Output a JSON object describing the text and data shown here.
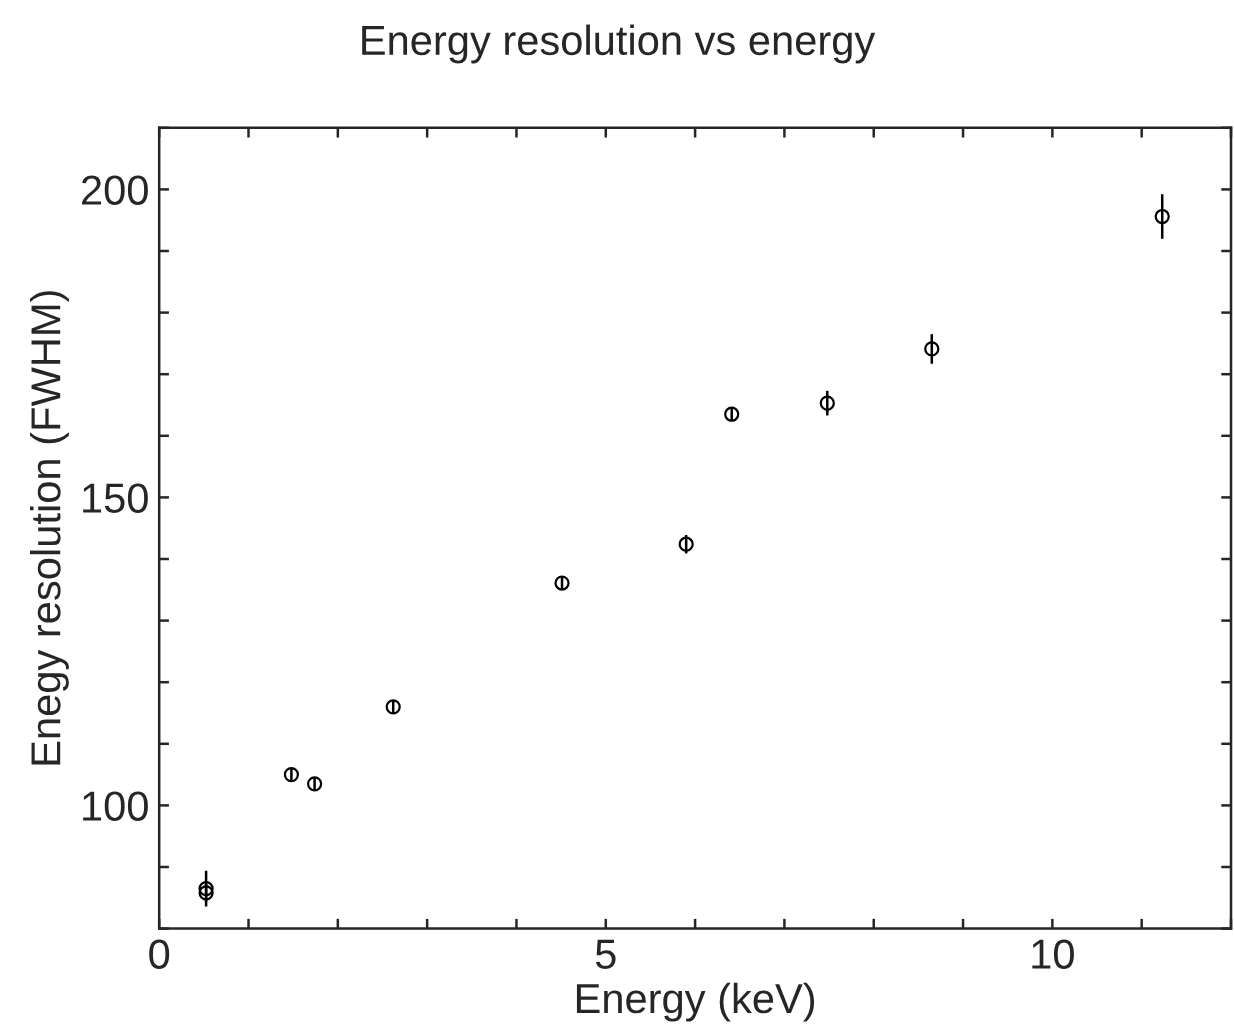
{
  "chart_data": {
    "type": "scatter",
    "title": "Energy resolution vs energy",
    "xlabel": "Energy (keV)",
    "ylabel": "Enegy resolution (FWHM)",
    "series": [
      {
        "color": "#000000",
        "x": [
          0.525,
          0.525,
          1.48,
          1.74,
          2.62,
          4.51,
          5.9,
          6.41,
          7.48,
          8.65,
          11.23
        ],
        "values": [
          86.5,
          85.8,
          105.0,
          103.5,
          116.0,
          136.1,
          142.4,
          163.5,
          165.3,
          174.1,
          195.6
        ],
        "errors": [
          2.9,
          1.5,
          1,
          1,
          1,
          1,
          1.5,
          1,
          2,
          2.4,
          3.6
        ]
      }
    ],
    "marker": "circle",
    "grid": false,
    "legend": false,
    "xlim": [
      0,
      12
    ],
    "xticks": [
      0,
      {
        "value": 1,
        "label": null
      },
      {
        "value": 2,
        "label": null
      },
      {
        "value": 3,
        "label": null
      },
      {
        "value": 4,
        "label": null
      },
      5,
      {
        "value": 6,
        "label": null
      },
      {
        "value": 7,
        "label": null
      },
      {
        "value": 8,
        "label": null
      },
      {
        "value": 9,
        "label": null
      },
      10,
      {
        "value": 11,
        "label": null
      },
      {
        "value": 12,
        "label": null
      }
    ],
    "ylim": [
      80,
      210
    ],
    "yticks": [
      {
        "value": 80,
        "label": null
      },
      {
        "value": 90,
        "label": null
      },
      100,
      {
        "value": 110,
        "label": null
      },
      {
        "value": 120,
        "label": null
      },
      {
        "value": 130,
        "label": null
      },
      {
        "value": 140,
        "label": null
      },
      150,
      {
        "value": 160,
        "label": null
      },
      {
        "value": 170,
        "label": null
      },
      {
        "value": 180,
        "label": null
      },
      {
        "value": 190,
        "label": null
      },
      200,
      {
        "value": 210,
        "label": null
      }
    ]
  }
}
